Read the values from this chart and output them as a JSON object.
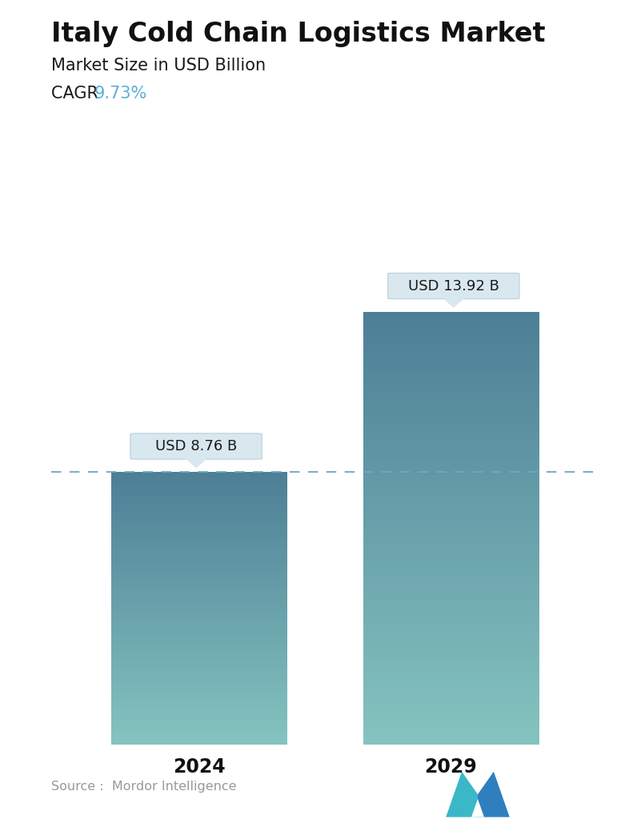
{
  "title": "Italy Cold Chain Logistics Market",
  "subtitle": "Market Size in USD Billion",
  "cagr_label": "CAGR ",
  "cagr_value": "9.73%",
  "cagr_color": "#5BAFD6",
  "categories": [
    "2024",
    "2029"
  ],
  "values": [
    8.76,
    13.92
  ],
  "bar_labels": [
    "USD 8.76 B",
    "USD 13.92 B"
  ],
  "bar_top_color": "#4d7f96",
  "bar_bottom_color": "#85c4c0",
  "dashed_line_color": "#6aaabf",
  "source_text": "Source :  Mordor Intelligence",
  "source_color": "#999999",
  "background_color": "#ffffff",
  "title_fontsize": 24,
  "subtitle_fontsize": 15,
  "cagr_fontsize": 15,
  "tick_fontsize": 17,
  "bar_label_fontsize": 13,
  "ylim": [
    0,
    16.5
  ],
  "bar_positions": [
    0.27,
    0.73
  ],
  "bar_width": 0.32
}
